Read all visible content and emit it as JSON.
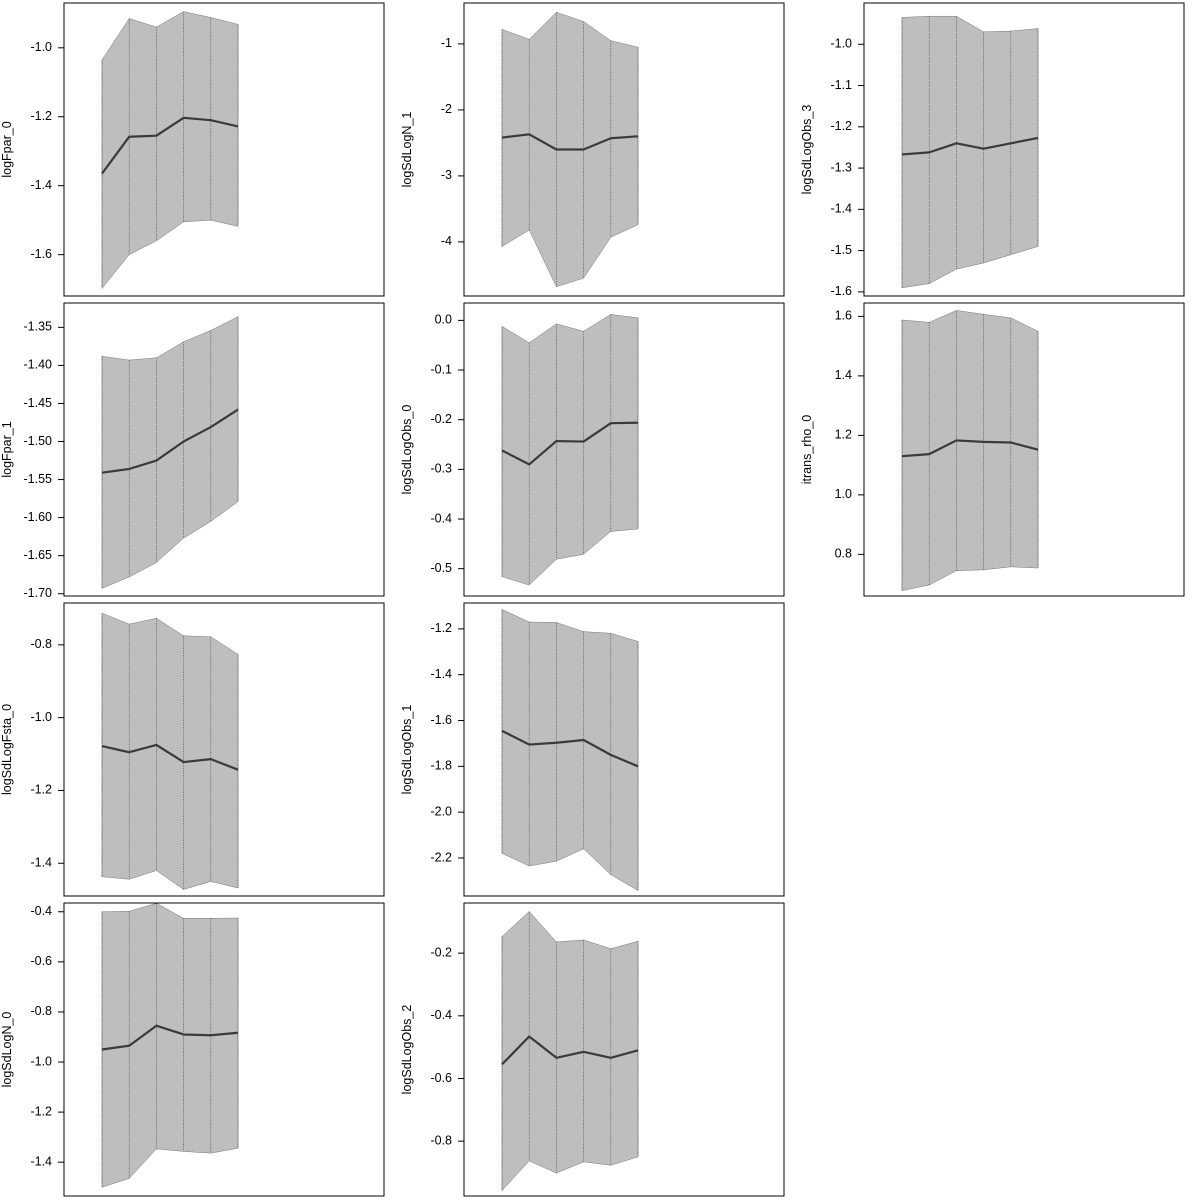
{
  "chart_data": [
    {
      "type": "line",
      "ylabel": "logFpar_0",
      "x": [
        1,
        2,
        3,
        4,
        5,
        6
      ],
      "series": [
        {
          "values": [
            -1.365,
            -1.258,
            -1.255,
            -1.203,
            -1.21,
            -1.228
          ]
        }
      ],
      "band_lower": [
        -1.698,
        -1.6,
        -1.56,
        -1.505,
        -1.5,
        -1.518
      ],
      "band_upper": [
        -1.035,
        -0.915,
        -0.94,
        -0.895,
        -0.912,
        -0.932
      ],
      "yticks": [
        -1.6,
        -1.4,
        -1.2,
        -1.0
      ],
      "yticklabels": [
        "-1.6",
        "-1.4",
        "-1.2",
        "-1.0"
      ],
      "ylim": [
        -1.72,
        -0.87
      ]
    },
    {
      "type": "line",
      "ylabel": "logSdLogN_1",
      "x": [
        1,
        2,
        3,
        4,
        5,
        6
      ],
      "series": [
        {
          "values": [
            -2.42,
            -2.37,
            -2.6,
            -2.6,
            -2.43,
            -2.4
          ]
        }
      ],
      "band_lower": [
        -4.07,
        -3.82,
        -4.68,
        -4.55,
        -3.93,
        -3.74
      ],
      "band_upper": [
        -0.78,
        -0.93,
        -0.52,
        -0.66,
        -0.95,
        -1.05
      ],
      "yticks": [
        -4,
        -3,
        -2,
        -1
      ],
      "yticklabels": [
        "-4",
        "-3",
        "-2",
        "-1"
      ],
      "ylim": [
        -4.82,
        -0.38
      ]
    },
    {
      "type": "line",
      "ylabel": "logSdLogObs_3",
      "x": [
        1,
        2,
        3,
        4,
        5,
        6
      ],
      "series": [
        {
          "values": [
            -1.267,
            -1.262,
            -1.24,
            -1.253,
            -1.24,
            -1.227
          ]
        }
      ],
      "band_lower": [
        -1.59,
        -1.58,
        -1.545,
        -1.53,
        -1.51,
        -1.49
      ],
      "band_upper": [
        -0.935,
        -0.932,
        -0.932,
        -0.97,
        -0.968,
        -0.962
      ],
      "yticks": [
        -1.6,
        -1.5,
        -1.4,
        -1.3,
        -1.2,
        -1.1,
        -1.0
      ],
      "yticklabels": [
        "-1.6",
        "-1.5",
        "-1.4",
        "-1.3",
        "-1.2",
        "-1.1",
        "-1.0"
      ],
      "ylim": [
        -1.61,
        -0.9
      ]
    },
    {
      "type": "line",
      "ylabel": "logFpar_1",
      "x": [
        1,
        2,
        3,
        4,
        5,
        6
      ],
      "series": [
        {
          "values": [
            -1.541,
            -1.536,
            -1.525,
            -1.5,
            -1.481,
            -1.458
          ]
        }
      ],
      "band_lower": [
        -1.693,
        -1.678,
        -1.659,
        -1.627,
        -1.605,
        -1.579
      ],
      "band_upper": [
        -1.388,
        -1.393,
        -1.39,
        -1.369,
        -1.354,
        -1.336
      ],
      "yticks": [
        -1.7,
        -1.65,
        -1.6,
        -1.55,
        -1.5,
        -1.45,
        -1.4,
        -1.35
      ],
      "yticklabels": [
        "-1.70",
        "-1.65",
        "-1.60",
        "-1.55",
        "-1.50",
        "-1.45",
        "-1.40",
        "-1.35"
      ],
      "ylim": [
        -1.703,
        -1.318
      ]
    },
    {
      "type": "line",
      "ylabel": "logSdLogObs_0",
      "x": [
        1,
        2,
        3,
        4,
        5,
        6
      ],
      "series": [
        {
          "values": [
            -0.262,
            -0.29,
            -0.243,
            -0.244,
            -0.207,
            -0.206
          ]
        }
      ],
      "band_lower": [
        -0.516,
        -0.533,
        -0.481,
        -0.471,
        -0.425,
        -0.42
      ],
      "band_upper": [
        -0.012,
        -0.045,
        -0.007,
        -0.022,
        0.012,
        0.005
      ],
      "yticks": [
        -0.5,
        -0.4,
        -0.3,
        -0.2,
        -0.1,
        0.0
      ],
      "yticklabels": [
        "-0.5",
        "-0.4",
        "-0.3",
        "-0.2",
        "-0.1",
        "0.0"
      ],
      "ylim": [
        -0.555,
        0.035
      ]
    },
    {
      "type": "line",
      "ylabel": "itrans_rho_0",
      "x": [
        1,
        2,
        3,
        4,
        5,
        6
      ],
      "series": [
        {
          "values": [
            1.13,
            1.137,
            1.183,
            1.178,
            1.176,
            1.152
          ]
        }
      ],
      "band_lower": [
        0.678,
        0.697,
        0.745,
        0.748,
        0.758,
        0.754
      ],
      "band_upper": [
        1.588,
        1.58,
        1.62,
        1.607,
        1.595,
        1.55
      ],
      "yticks": [
        0.8,
        1.0,
        1.2,
        1.4,
        1.6
      ],
      "yticklabels": [
        "0.8",
        "1.0",
        "1.2",
        "1.4",
        "1.6"
      ],
      "ylim": [
        0.66,
        1.645
      ]
    },
    {
      "type": "line",
      "ylabel": "logSdLogFsta_0",
      "x": [
        1,
        2,
        3,
        4,
        5,
        6
      ],
      "series": [
        {
          "values": [
            -1.078,
            -1.095,
            -1.075,
            -1.122,
            -1.114,
            -1.143
          ]
        }
      ],
      "band_lower": [
        -1.437,
        -1.444,
        -1.42,
        -1.472,
        -1.45,
        -1.468
      ],
      "band_upper": [
        -0.713,
        -0.743,
        -0.727,
        -0.775,
        -0.778,
        -0.826
      ],
      "yticks": [
        -1.4,
        -1.2,
        -1.0,
        -0.8
      ],
      "yticklabels": [
        "-1.4",
        "-1.2",
        "-1.0",
        "-0.8"
      ],
      "ylim": [
        -1.49,
        -0.685
      ]
    },
    {
      "type": "line",
      "ylabel": "logSdLogObs_1",
      "x": [
        1,
        2,
        3,
        4,
        5,
        6
      ],
      "series": [
        {
          "values": [
            -1.645,
            -1.705,
            -1.697,
            -1.685,
            -1.75,
            -1.8
          ]
        }
      ],
      "band_lower": [
        -2.18,
        -2.235,
        -2.214,
        -2.16,
        -2.273,
        -2.342
      ],
      "band_upper": [
        -1.115,
        -1.17,
        -1.172,
        -1.212,
        -1.219,
        -1.255
      ],
      "yticks": [
        -2.2,
        -2.0,
        -1.8,
        -1.6,
        -1.4,
        -1.2
      ],
      "yticklabels": [
        "-2.2",
        "-2.0",
        "-1.8",
        "-1.6",
        "-1.4",
        "-1.2"
      ],
      "ylim": [
        -2.366,
        -1.087
      ]
    },
    {
      "type": "line",
      "ylabel": "logSdLogN_0",
      "x": [
        1,
        2,
        3,
        4,
        5,
        6
      ],
      "series": [
        {
          "values": [
            -0.95,
            -0.935,
            -0.855,
            -0.89,
            -0.893,
            -0.883
          ]
        }
      ],
      "band_lower": [
        -1.5,
        -1.465,
        -1.347,
        -1.357,
        -1.364,
        -1.344
      ],
      "band_upper": [
        -0.4,
        -0.398,
        -0.366,
        -0.426,
        -0.426,
        -0.425
      ],
      "yticks": [
        -1.4,
        -1.2,
        -1.0,
        -0.8,
        -0.6,
        -0.4
      ],
      "yticklabels": [
        "-1.4",
        "-1.2",
        "-1.0",
        "-0.8",
        "-0.6",
        "-0.4"
      ],
      "ylim": [
        -1.535,
        -0.365
      ]
    },
    {
      "type": "line",
      "ylabel": "logSdLogObs_2",
      "x": [
        1,
        2,
        3,
        4,
        5,
        6
      ],
      "series": [
        {
          "values": [
            -0.555,
            -0.466,
            -0.534,
            -0.515,
            -0.534,
            -0.51
          ]
        }
      ],
      "band_lower": [
        -0.958,
        -0.863,
        -0.902,
        -0.866,
        -0.877,
        -0.85
      ],
      "band_upper": [
        -0.147,
        -0.067,
        -0.164,
        -0.158,
        -0.186,
        -0.162
      ],
      "yticks": [
        -0.8,
        -0.6,
        -0.4,
        -0.2
      ],
      "yticklabels": [
        "-0.8",
        "-0.6",
        "-0.4",
        "-0.2"
      ],
      "ylim": [
        -0.975,
        -0.04
      ]
    }
  ]
}
